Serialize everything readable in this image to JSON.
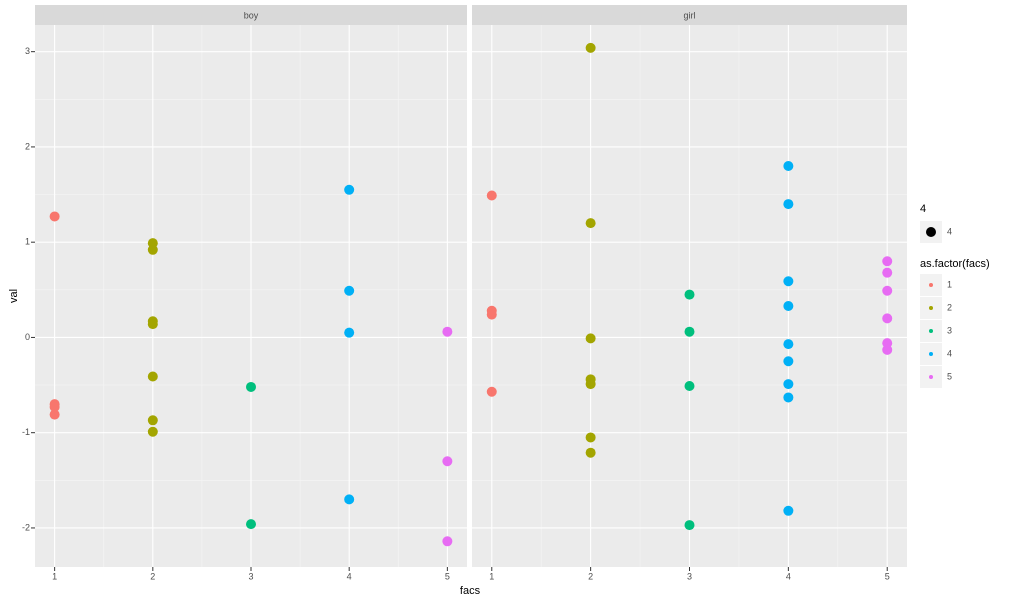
{
  "chart_data": {
    "type": "scatter",
    "x_label": "facs",
    "y_label": "val",
    "xlim": [
      0.8,
      5.2
    ],
    "xticks": [
      1,
      2,
      3,
      4,
      5
    ],
    "ylim": [
      -2.41,
      3.28
    ],
    "yticks": [
      -2,
      -1,
      0,
      1,
      2,
      3
    ],
    "grid": true,
    "size_legend": {
      "title": "4",
      "label": "4"
    },
    "legend": {
      "title": "as.factor(facs)",
      "entries": [
        {
          "name": "1",
          "color": "#F8766D"
        },
        {
          "name": "2",
          "color": "#A3A500"
        },
        {
          "name": "3",
          "color": "#00BF7D"
        },
        {
          "name": "4",
          "color": "#00B0F6"
        },
        {
          "name": "5",
          "color": "#E76BF3"
        }
      ]
    },
    "facets": [
      {
        "label": "boy",
        "series": [
          {
            "x": [
              1,
              1,
              1,
              1
            ],
            "values": [
              1.27,
              -0.7,
              -0.73,
              -0.81
            ]
          },
          {
            "x": [
              2,
              2,
              2,
              2,
              2,
              2,
              2
            ],
            "values": [
              0.99,
              0.92,
              0.17,
              0.14,
              -0.41,
              -0.87,
              -0.99
            ]
          },
          {
            "x": [
              3,
              3
            ],
            "values": [
              -0.52,
              -1.96
            ]
          },
          {
            "x": [
              4,
              4,
              4,
              4
            ],
            "values": [
              1.55,
              0.49,
              0.05,
              -1.7
            ]
          },
          {
            "x": [
              5,
              5,
              5
            ],
            "values": [
              0.06,
              -1.3,
              -2.14
            ]
          }
        ]
      },
      {
        "label": "girl",
        "series": [
          {
            "x": [
              1,
              1,
              1,
              1
            ],
            "values": [
              1.49,
              0.28,
              0.24,
              -0.57
            ]
          },
          {
            "x": [
              2,
              2,
              2,
              2,
              2,
              2,
              2
            ],
            "values": [
              3.04,
              1.2,
              -0.01,
              -0.44,
              -0.49,
              -1.05,
              -1.21
            ]
          },
          {
            "x": [
              3,
              3,
              3,
              3
            ],
            "values": [
              0.45,
              0.06,
              -0.51,
              -1.97
            ]
          },
          {
            "x": [
              4,
              4,
              4,
              4,
              4,
              4,
              4,
              4,
              4
            ],
            "values": [
              1.8,
              1.4,
              0.59,
              0.33,
              -0.07,
              -0.25,
              -0.49,
              -0.63,
              -1.82
            ]
          },
          {
            "x": [
              5,
              5,
              5,
              5,
              5,
              5
            ],
            "values": [
              0.8,
              0.68,
              0.49,
              0.2,
              -0.06,
              -0.13
            ]
          }
        ]
      }
    ]
  }
}
